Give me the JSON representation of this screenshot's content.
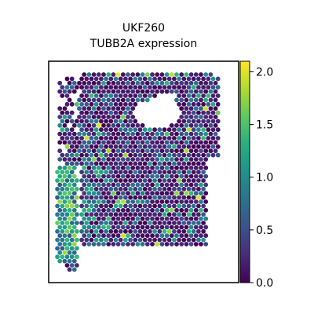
{
  "chart_data": {
    "type": "scatter",
    "title_lines": [
      "UKF260",
      "TUBB2A expression"
    ],
    "xlabel": "",
    "ylabel": "",
    "colorbar": {
      "colormap": "viridis",
      "range": [
        0.0,
        2.1
      ],
      "ticks": [
        0.0,
        0.5,
        1.0,
        1.5,
        2.0
      ],
      "tick_labels": [
        "0.0",
        "0.5",
        "1.0",
        "1.5",
        "2.0"
      ]
    },
    "axes": {
      "xticks": false,
      "yticks": false,
      "grid": false
    },
    "spot_summary": {
      "marker": "hexagon",
      "background_value": 0.0,
      "high_region": "left strip",
      "max_value": 2.1
    }
  }
}
